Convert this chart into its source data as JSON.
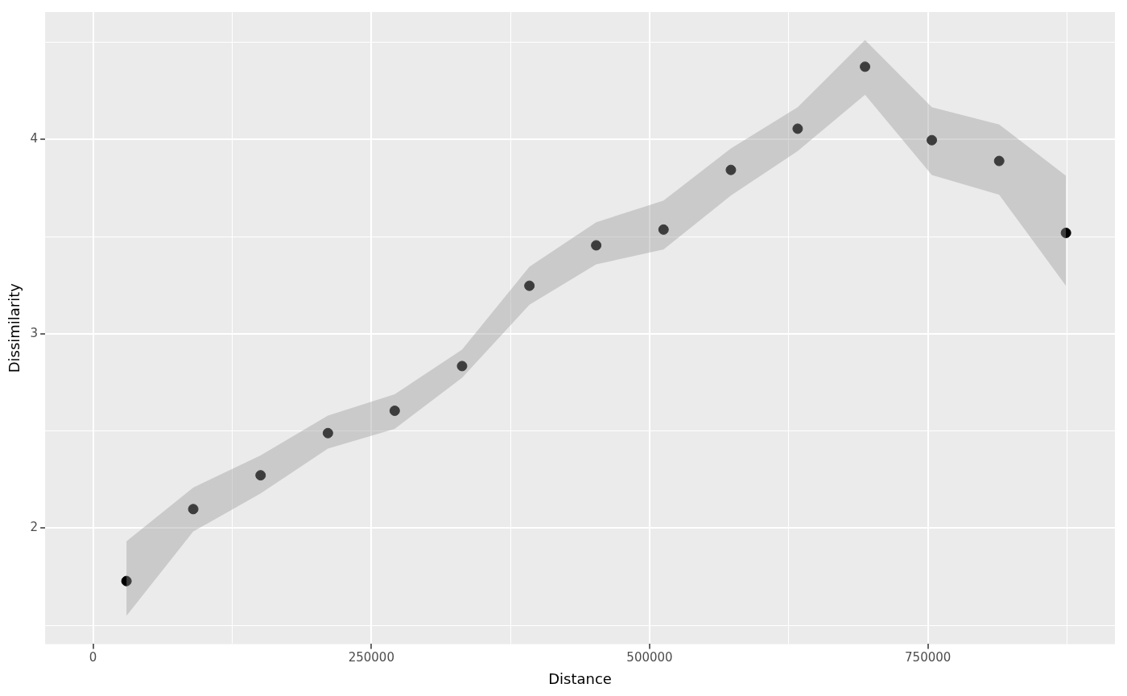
{
  "chart_data": {
    "type": "scatter",
    "xlabel": "Distance",
    "ylabel": "Dissimilarity",
    "xlim": [
      -43000,
      918000
    ],
    "ylim": [
      1.404,
      4.655
    ],
    "xticks": [
      0,
      {
        "value": 125000,
        "label": null
      },
      250000,
      {
        "value": 375000,
        "label": null
      },
      500000,
      {
        "value": 625000,
        "label": null
      },
      750000,
      {
        "value": 875000,
        "label": null
      }
    ],
    "yticks": [
      {
        "value": 1.5,
        "label": null
      },
      2,
      {
        "value": 2.5,
        "label": null
      },
      3,
      {
        "value": 3.5,
        "label": null
      },
      4,
      {
        "value": 4.5,
        "label": null
      }
    ],
    "grid": true,
    "legend": false,
    "marker": "circle",
    "series": [
      {
        "color": "#000000",
        "x": [
          30000,
          90000,
          150500,
          211000,
          271000,
          331500,
          392000,
          452000,
          512500,
          573000,
          633000,
          693500,
          753500,
          814000,
          874000
        ],
        "values": [
          1.728,
          2.098,
          2.272,
          2.489,
          2.604,
          2.834,
          3.247,
          3.455,
          3.536,
          3.843,
          4.055,
          4.374,
          3.996,
          3.889,
          3.519
        ],
        "lower": [
          1.549,
          1.983,
          2.179,
          2.409,
          2.511,
          2.774,
          3.149,
          3.357,
          3.434,
          3.711,
          3.94,
          4.23,
          3.817,
          3.715,
          3.247
        ],
        "upper": [
          1.932,
          2.209,
          2.374,
          2.579,
          2.689,
          2.919,
          3.345,
          3.574,
          3.685,
          3.953,
          4.166,
          4.511,
          4.166,
          4.077,
          3.813
        ]
      }
    ]
  }
}
